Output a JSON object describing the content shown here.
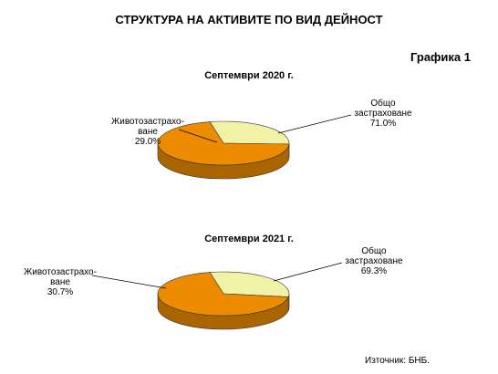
{
  "title": "СТРУКТУРА НА АКТИВИТЕ ПО ВИД ДЕЙНОСТ",
  "figure_label": "Графика 1",
  "source": "Източник:  БНБ.",
  "chart_data": [
    {
      "type": "pie",
      "title": "Септември 2020 г.",
      "categories": [
        "Животозастрахо-\nване",
        "Общо\nзастраховане"
      ],
      "values": [
        29.0,
        71.0
      ],
      "value_labels": [
        "29.0%",
        "71.0%"
      ],
      "colors": [
        "#f2f2a6",
        "#ed8c00"
      ]
    },
    {
      "type": "pie",
      "title": "Септември 2021 г.",
      "categories": [
        "Животозастрахо-\nване",
        "Общо\nзастраховане"
      ],
      "values": [
        30.7,
        69.3
      ],
      "value_labels": [
        "30.7%",
        "69.3%"
      ],
      "colors": [
        "#f2f2a6",
        "#ed8c00"
      ]
    }
  ]
}
